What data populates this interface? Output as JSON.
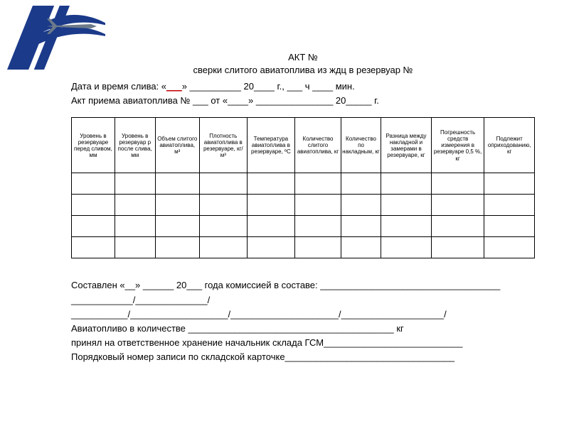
{
  "logo": {
    "stripe_colors": [
      "#1b3a8a",
      "#ffffff",
      "#c3132e"
    ],
    "swoosh_color": "#1b3a8a",
    "plane_color": "#6c7a89"
  },
  "title": {
    "line1": "АКТ №",
    "line2": "сверки слитого авиатоплива из ждц в резервуар №"
  },
  "meta": {
    "date_prefix": "Дата и время слива: «",
    "date_mid": "» __________ 20",
    "date_suffix": "____  г., ___ ч ____ мин.",
    "act_prefix": "Акт приема авиатоплива № ___ от «",
    "act_mid": "____» _______________ 20",
    "act_suffix": "_____   г."
  },
  "table": {
    "num_rows": 4,
    "headers": [
      "Уровень в резервуаре перед сливом, мм",
      "Уровень в резервуар р после слива, мм",
      "Объем слитого авиатоплива, м³",
      "Плотность авиатоплива в резервуаре, кг/м³",
      "Температура авиатоплива в резервуаре, ºС",
      "Количество слитого авиатоплива, кг",
      "Количество по накладным, кг",
      "Разница между накладной и замерами в резервуаре, кг",
      "Погрешность средств измерения в резервуаре 0,5 %, кг",
      "Подлежит оприходованию, кг"
    ]
  },
  "footer": {
    "l1": "Составлен  «__» ______ 20___  года комиссией в составе: ___________________________________",
    "l2": "____________/______________/",
    "l3": "___________/___________________/_____________________/____________________/",
    "l4_a": "Авиатопливо в количестве ________________________________________ кг",
    "l5": "принял на ответственное хранение начальник склада ГСМ___________________________",
    "l6": "Порядковый номер записи по складской карточке_________________________________"
  }
}
